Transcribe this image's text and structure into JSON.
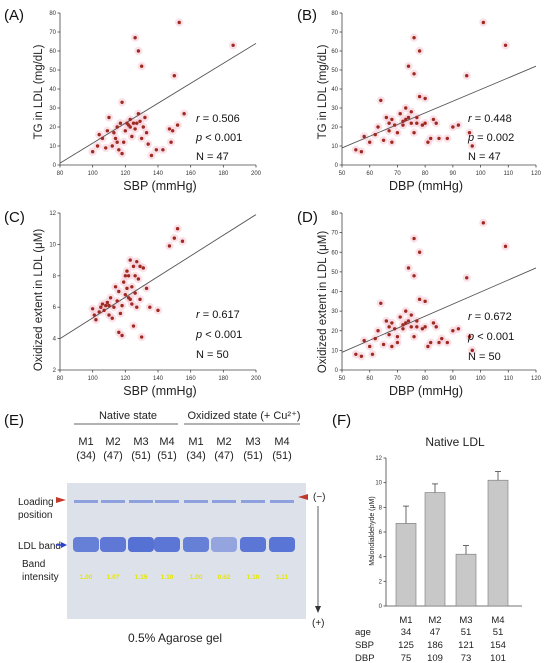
{
  "colors": {
    "point": "#9e2a22",
    "halo": "#f6c9d6",
    "fit_line": "#555555",
    "bar_fill": "#c8c8c8",
    "gel_band": "#3f5fd0",
    "intensity_text": "#e6e600",
    "arrow_red": "#c0392b",
    "arrow_blue": "#2a3fd0"
  },
  "chart_data": [
    {
      "id": "A",
      "type": "scatter",
      "panel_label": "(A)",
      "xlabel": "SBP (mmHg)",
      "ylabel": "TG in LDL (mg/dL)",
      "xlim": [
        80,
        200
      ],
      "ylim": [
        0,
        80
      ],
      "xticks": [
        80,
        100,
        120,
        140,
        160,
        180,
        200
      ],
      "yticks": [
        0,
        10,
        20,
        30,
        40,
        50,
        60,
        70,
        80
      ],
      "fit_line": {
        "x": [
          80,
          200
        ],
        "y": [
          1,
          64
        ]
      },
      "stats": {
        "r": "0.506",
        "p": "< 0.001",
        "N": "N = 47"
      },
      "points": [
        [
          100,
          7
        ],
        [
          103,
          10
        ],
        [
          104,
          16
        ],
        [
          106,
          14
        ],
        [
          108,
          9
        ],
        [
          109,
          18
        ],
        [
          110,
          25
        ],
        [
          112,
          10
        ],
        [
          113,
          17
        ],
        [
          114,
          14
        ],
        [
          115,
          20
        ],
        [
          116,
          8
        ],
        [
          117,
          22
        ],
        [
          118,
          33
        ],
        [
          119,
          12
        ],
        [
          120,
          18
        ],
        [
          121,
          22
        ],
        [
          122,
          21
        ],
        [
          123,
          20
        ],
        [
          123,
          24
        ],
        [
          124,
          15
        ],
        [
          125,
          22
        ],
        [
          126,
          19
        ],
        [
          126,
          67
        ],
        [
          127,
          22
        ],
        [
          128,
          27
        ],
        [
          128,
          60
        ],
        [
          129,
          23
        ],
        [
          130,
          14
        ],
        [
          130,
          52
        ],
        [
          131,
          20
        ],
        [
          132,
          25
        ],
        [
          133,
          17
        ],
        [
          134,
          11
        ],
        [
          118,
          6
        ],
        [
          136,
          5
        ],
        [
          139,
          8
        ],
        [
          143,
          8
        ],
        [
          147,
          19
        ],
        [
          148,
          12
        ],
        [
          149,
          18
        ],
        [
          150,
          47
        ],
        [
          152,
          21
        ],
        [
          153,
          75
        ],
        [
          156,
          27
        ],
        [
          186,
          63
        ],
        [
          115,
          12
        ]
      ]
    },
    {
      "id": "B",
      "type": "scatter",
      "panel_label": "(B)",
      "xlabel": "DBP (mmHg)",
      "ylabel": "TG in LDL (mg/dL)",
      "xlim": [
        50,
        120
      ],
      "ylim": [
        0,
        80
      ],
      "xticks": [
        50,
        60,
        70,
        80,
        90,
        100,
        110,
        120
      ],
      "yticks": [
        0,
        10,
        20,
        30,
        40,
        50,
        60,
        70,
        80
      ],
      "fit_line": {
        "x": [
          50,
          120
        ],
        "y": [
          9,
          52
        ]
      },
      "stats": {
        "r": "0.448",
        "p": "0.002",
        "N": "N = 47"
      },
      "points": [
        [
          55,
          8
        ],
        [
          57,
          7
        ],
        [
          58,
          15
        ],
        [
          60,
          12
        ],
        [
          62,
          16
        ],
        [
          63,
          20
        ],
        [
          64,
          34
        ],
        [
          65,
          13
        ],
        [
          66,
          25
        ],
        [
          67,
          18
        ],
        [
          67,
          22
        ],
        [
          68,
          24
        ],
        [
          68,
          12
        ],
        [
          69,
          21
        ],
        [
          70,
          17
        ],
        [
          71,
          27
        ],
        [
          72,
          23
        ],
        [
          72,
          21
        ],
        [
          73,
          24
        ],
        [
          73,
          30
        ],
        [
          74,
          52
        ],
        [
          74,
          25
        ],
        [
          75,
          22
        ],
        [
          75,
          28
        ],
        [
          76,
          17
        ],
        [
          76,
          48
        ],
        [
          76,
          67
        ],
        [
          77,
          22
        ],
        [
          77,
          25
        ],
        [
          78,
          60
        ],
        [
          78,
          36
        ],
        [
          79,
          21
        ],
        [
          80,
          35
        ],
        [
          80,
          22
        ],
        [
          81,
          12
        ],
        [
          82,
          14
        ],
        [
          83,
          24
        ],
        [
          84,
          22
        ],
        [
          85,
          14
        ],
        [
          88,
          14
        ],
        [
          90,
          20
        ],
        [
          92,
          21
        ],
        [
          95,
          47
        ],
        [
          96,
          17
        ],
        [
          97,
          10
        ],
        [
          101,
          75
        ],
        [
          109,
          63
        ]
      ]
    },
    {
      "id": "C",
      "type": "scatter",
      "panel_label": "(C)",
      "xlabel": "SBP (mmHg)",
      "ylabel": "Oxidized extent in LDL (μM)",
      "xlim": [
        80,
        200
      ],
      "ylim": [
        2,
        12
      ],
      "xticks": [
        80,
        100,
        120,
        140,
        160,
        180,
        200
      ],
      "yticks": [
        2,
        4,
        6,
        8,
        10,
        12
      ],
      "fit_line": {
        "x": [
          80,
          200
        ],
        "y": [
          4.0,
          11.9
        ]
      },
      "stats": {
        "r": "0.617",
        "p": "< 0.001",
        "N": "N = 50"
      },
      "points": [
        [
          100,
          5.9
        ],
        [
          101,
          5.5
        ],
        [
          102,
          5.2
        ],
        [
          104,
          5.7
        ],
        [
          105,
          6.0
        ],
        [
          106,
          6.2
        ],
        [
          107,
          5.8
        ],
        [
          108,
          6.1
        ],
        [
          109,
          6.3
        ],
        [
          110,
          6.1
        ],
        [
          110,
          5.5
        ],
        [
          111,
          6.6
        ],
        [
          112,
          5.3
        ],
        [
          113,
          6.0
        ],
        [
          114,
          7.3
        ],
        [
          115,
          6.4
        ],
        [
          116,
          7.0
        ],
        [
          116,
          4.4
        ],
        [
          117,
          5.6
        ],
        [
          118,
          6.1
        ],
        [
          118,
          4.2
        ],
        [
          119,
          7.6
        ],
        [
          120,
          8.0
        ],
        [
          120,
          6.8
        ],
        [
          121,
          8.3
        ],
        [
          121,
          7.2
        ],
        [
          122,
          6.6
        ],
        [
          122,
          8.0
        ],
        [
          123,
          6.5
        ],
        [
          123,
          9.0
        ],
        [
          124,
          7.3
        ],
        [
          124,
          6.2
        ],
        [
          125,
          8.6
        ],
        [
          125,
          4.8
        ],
        [
          126,
          6.9
        ],
        [
          126,
          8.0
        ],
        [
          127,
          6.0
        ],
        [
          127,
          8.9
        ],
        [
          128,
          7.8
        ],
        [
          129,
          6.5
        ],
        [
          129,
          8.6
        ],
        [
          130,
          4.1
        ],
        [
          131,
          8.5
        ],
        [
          133,
          7.2
        ],
        [
          135,
          6.0
        ],
        [
          140,
          5.8
        ],
        [
          147,
          9.9
        ],
        [
          150,
          10.4
        ],
        [
          152,
          11.0
        ],
        [
          155,
          10.2
        ]
      ]
    },
    {
      "id": "D",
      "type": "scatter",
      "panel_label": "(D)",
      "xlabel": "DBP (mmHg)",
      "ylabel": "Oxidized extent in LDL (μM)",
      "xlim": [
        50,
        120
      ],
      "ylim": [
        0,
        80
      ],
      "xticks": [
        50,
        60,
        70,
        80,
        90,
        100,
        110,
        120
      ],
      "yticks": [
        0,
        10,
        20,
        30,
        40,
        50,
        60,
        70,
        80
      ],
      "fit_line": {
        "x": [
          50,
          120
        ],
        "y": [
          9,
          52
        ]
      },
      "stats": {
        "r": "0.672",
        "p": "< 0.001",
        "N": "N = 50"
      },
      "points": [
        [
          55,
          8
        ],
        [
          57,
          7
        ],
        [
          58,
          15
        ],
        [
          60,
          12
        ],
        [
          61,
          8
        ],
        [
          62,
          16
        ],
        [
          63,
          20
        ],
        [
          64,
          34
        ],
        [
          65,
          13
        ],
        [
          66,
          25
        ],
        [
          67,
          18
        ],
        [
          67,
          22
        ],
        [
          68,
          24
        ],
        [
          68,
          12
        ],
        [
          69,
          21
        ],
        [
          70,
          17
        ],
        [
          71,
          27
        ],
        [
          72,
          23
        ],
        [
          72,
          21
        ],
        [
          73,
          24
        ],
        [
          73,
          30
        ],
        [
          74,
          52
        ],
        [
          74,
          25
        ],
        [
          75,
          22
        ],
        [
          75,
          28
        ],
        [
          76,
          17
        ],
        [
          76,
          48
        ],
        [
          76,
          67
        ],
        [
          77,
          22
        ],
        [
          77,
          25
        ],
        [
          78,
          60
        ],
        [
          78,
          36
        ],
        [
          79,
          21
        ],
        [
          80,
          35
        ],
        [
          80,
          22
        ],
        [
          81,
          12
        ],
        [
          82,
          14
        ],
        [
          83,
          24
        ],
        [
          84,
          22
        ],
        [
          85,
          14
        ],
        [
          86,
          16
        ],
        [
          88,
          14
        ],
        [
          90,
          20
        ],
        [
          92,
          21
        ],
        [
          95,
          47
        ],
        [
          96,
          17
        ],
        [
          97,
          10
        ],
        [
          101,
          75
        ],
        [
          109,
          63
        ],
        [
          70,
          14
        ]
      ]
    },
    {
      "id": "F",
      "type": "bar",
      "panel_label": "(F)",
      "title": "Native LDL",
      "ylabel": "Malondialdehyde (μM)",
      "categories": [
        "M1",
        "M2",
        "M3",
        "M4"
      ],
      "values": [
        6.7,
        9.2,
        4.2,
        10.2
      ],
      "errors": [
        1.4,
        0.7,
        0.7,
        0.7
      ],
      "ylim": [
        0,
        12
      ]
    }
  ],
  "gel": {
    "panel_label": "(E)",
    "header_native": "Native state",
    "header_oxidized": "Oxidized state (+ Cu²⁺)",
    "lanes": [
      {
        "name": "M1",
        "sub": "(34)",
        "intensity": "1.00"
      },
      {
        "name": "M2",
        "sub": "(47)",
        "intensity": "1.07"
      },
      {
        "name": "M3",
        "sub": "(51)",
        "intensity": "1.15"
      },
      {
        "name": "M4",
        "sub": "(51)",
        "intensity": "1.10"
      },
      {
        "name": "M1",
        "sub": "(34)",
        "intensity": "1.00"
      },
      {
        "name": "M2",
        "sub": "(47)",
        "intensity": "0.62"
      },
      {
        "name": "M3",
        "sub": "(51)",
        "intensity": "1.10"
      },
      {
        "name": "M4",
        "sub": "(51)",
        "intensity": "1.11"
      }
    ],
    "label_loading": "Loading",
    "label_position": "position",
    "label_ldl": "LDL band",
    "label_band": "Band",
    "label_intensity": "intensity",
    "minus": "(−)",
    "plus": "(+)",
    "caption": "0.5% Agarose gel"
  },
  "bar_table": {
    "row_labels": [
      "age",
      "SBP",
      "DBP"
    ],
    "rows": [
      [
        "34",
        "47",
        "51",
        "51"
      ],
      [
        "125",
        "186",
        "121",
        "154"
      ],
      [
        "75",
        "109",
        "73",
        "101"
      ]
    ]
  }
}
